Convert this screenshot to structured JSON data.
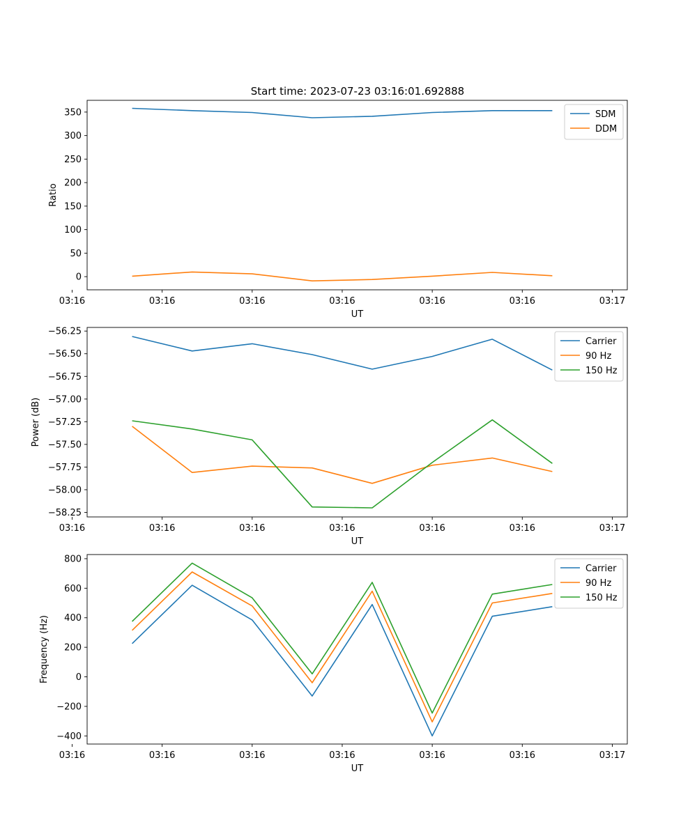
{
  "figure": {
    "title": "Start time: 2023-07-23 03:16:01.692888"
  },
  "chart_data": [
    {
      "type": "line",
      "title": "Start time: 2023-07-23 03:16:01.692888",
      "xlabel": "UT",
      "ylabel": "Ratio",
      "x": [
        1,
        2,
        3,
        4,
        5,
        6,
        7,
        8
      ],
      "xlim": [
        0.25,
        9.25
      ],
      "x_ticks": [
        0,
        1.5,
        3,
        4.5,
        6,
        7.5,
        9
      ],
      "x_tick_labels": [
        "03:16",
        "03:16",
        "03:16",
        "03:16",
        "03:16",
        "03:16",
        "03:17"
      ],
      "ylim": [
        -28,
        375
      ],
      "y_ticks": [
        0,
        50,
        100,
        150,
        200,
        250,
        300,
        350
      ],
      "y_tick_labels": [
        "0",
        "50",
        "100",
        "150",
        "200",
        "250",
        "300",
        "350"
      ],
      "legend": "top-right",
      "series": [
        {
          "name": "SDM",
          "color": "#1f77b4",
          "values": [
            358,
            353,
            349,
            338,
            341,
            349,
            353,
            353
          ]
        },
        {
          "name": "DDM",
          "color": "#ff7f0e",
          "values": [
            1,
            10,
            6,
            -9,
            -6,
            1,
            9,
            2
          ]
        }
      ]
    },
    {
      "type": "line",
      "title": "",
      "xlabel": "UT",
      "ylabel": "Power (dB)",
      "x": [
        1,
        2,
        3,
        4,
        5,
        6,
        7,
        8
      ],
      "xlim": [
        0.25,
        9.25
      ],
      "x_ticks": [
        0,
        1.5,
        3,
        4.5,
        6,
        7.5,
        9
      ],
      "x_tick_labels": [
        "03:16",
        "03:16",
        "03:16",
        "03:16",
        "03:16",
        "03:16",
        "03:17"
      ],
      "ylim": [
        -58.3,
        -56.21
      ],
      "y_ticks": [
        -58.25,
        -58.0,
        -57.75,
        -57.5,
        -57.25,
        -57.0,
        -56.75,
        -56.5,
        -56.25
      ],
      "y_tick_labels": [
        "−58.25",
        "−58.00",
        "−57.75",
        "−57.50",
        "−57.25",
        "−57.00",
        "−56.75",
        "−56.50",
        "−56.25"
      ],
      "legend": "top-right",
      "series": [
        {
          "name": "Carrier",
          "color": "#1f77b4",
          "values": [
            -56.31,
            -56.47,
            -56.39,
            -56.51,
            -56.67,
            -56.53,
            -56.34,
            -56.68
          ]
        },
        {
          "name": "90 Hz",
          "color": "#ff7f0e",
          "values": [
            -57.3,
            -57.81,
            -57.74,
            -57.76,
            -57.93,
            -57.73,
            -57.65,
            -57.8
          ]
        },
        {
          "name": "150 Hz",
          "color": "#2ca02c",
          "values": [
            -57.24,
            -57.33,
            -57.45,
            -58.19,
            -58.2,
            -57.7,
            -57.23,
            -57.71
          ]
        }
      ]
    },
    {
      "type": "line",
      "title": "",
      "xlabel": "UT",
      "ylabel": "Frequency (Hz)",
      "x": [
        1,
        2,
        3,
        4,
        5,
        6,
        7,
        8
      ],
      "xlim": [
        0.25,
        9.25
      ],
      "x_ticks": [
        0,
        1.5,
        3,
        4.5,
        6,
        7.5,
        9
      ],
      "x_tick_labels": [
        "03:16",
        "03:16",
        "03:16",
        "03:16",
        "03:16",
        "03:16",
        "03:17"
      ],
      "ylim": [
        -455,
        828
      ],
      "y_ticks": [
        -400,
        -200,
        0,
        200,
        400,
        600,
        800
      ],
      "y_tick_labels": [
        "−400",
        "−200",
        "0",
        "200",
        "400",
        "600",
        "800"
      ],
      "legend": "top-right",
      "series": [
        {
          "name": "Carrier",
          "color": "#1f77b4",
          "values": [
            225,
            620,
            385,
            -130,
            490,
            -400,
            410,
            475
          ]
        },
        {
          "name": "90 Hz",
          "color": "#ff7f0e",
          "values": [
            315,
            710,
            480,
            -40,
            580,
            -305,
            500,
            565
          ]
        },
        {
          "name": "150 Hz",
          "color": "#2ca02c",
          "values": [
            375,
            770,
            535,
            20,
            640,
            -245,
            560,
            625
          ]
        }
      ]
    }
  ]
}
